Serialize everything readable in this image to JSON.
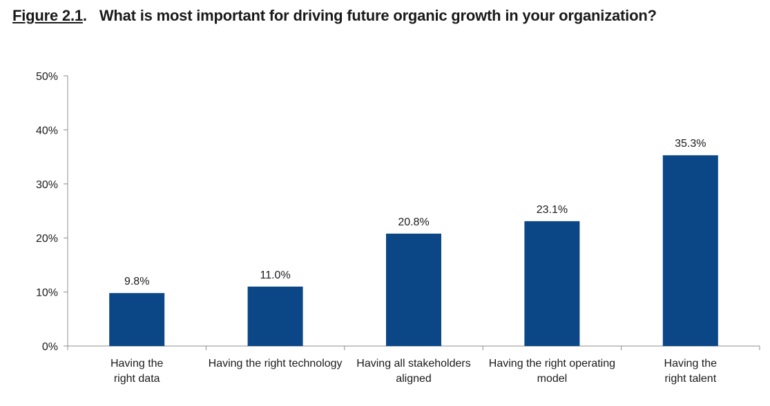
{
  "figure": {
    "label": "Figure 2.1",
    "label_suffix": ".",
    "title": "What is most important for driving future organic growth in your organization?"
  },
  "chart_data": {
    "type": "bar",
    "title": "What is most important for driving future organic growth in your organization?",
    "categories": [
      [
        "Having the",
        "right data"
      ],
      [
        "Having the right technology"
      ],
      [
        "Having all stakeholders",
        "aligned"
      ],
      [
        "Having the right operating",
        "model"
      ],
      [
        "Having the",
        "right talent"
      ]
    ],
    "values": [
      9.8,
      11.0,
      20.8,
      23.1,
      35.3
    ],
    "value_labels": [
      "9.8%",
      "11.0%",
      "20.8%",
      "23.1%",
      "35.3%"
    ],
    "ylim": [
      0,
      50
    ],
    "yticks": [
      0,
      10,
      20,
      30,
      40,
      50
    ],
    "ytick_labels": [
      "0%",
      "10%",
      "20%",
      "30%",
      "40%",
      "50%"
    ],
    "xlabel": "",
    "ylabel": "",
    "bar_color": "#0b4687",
    "grid": false,
    "legend": "none"
  }
}
